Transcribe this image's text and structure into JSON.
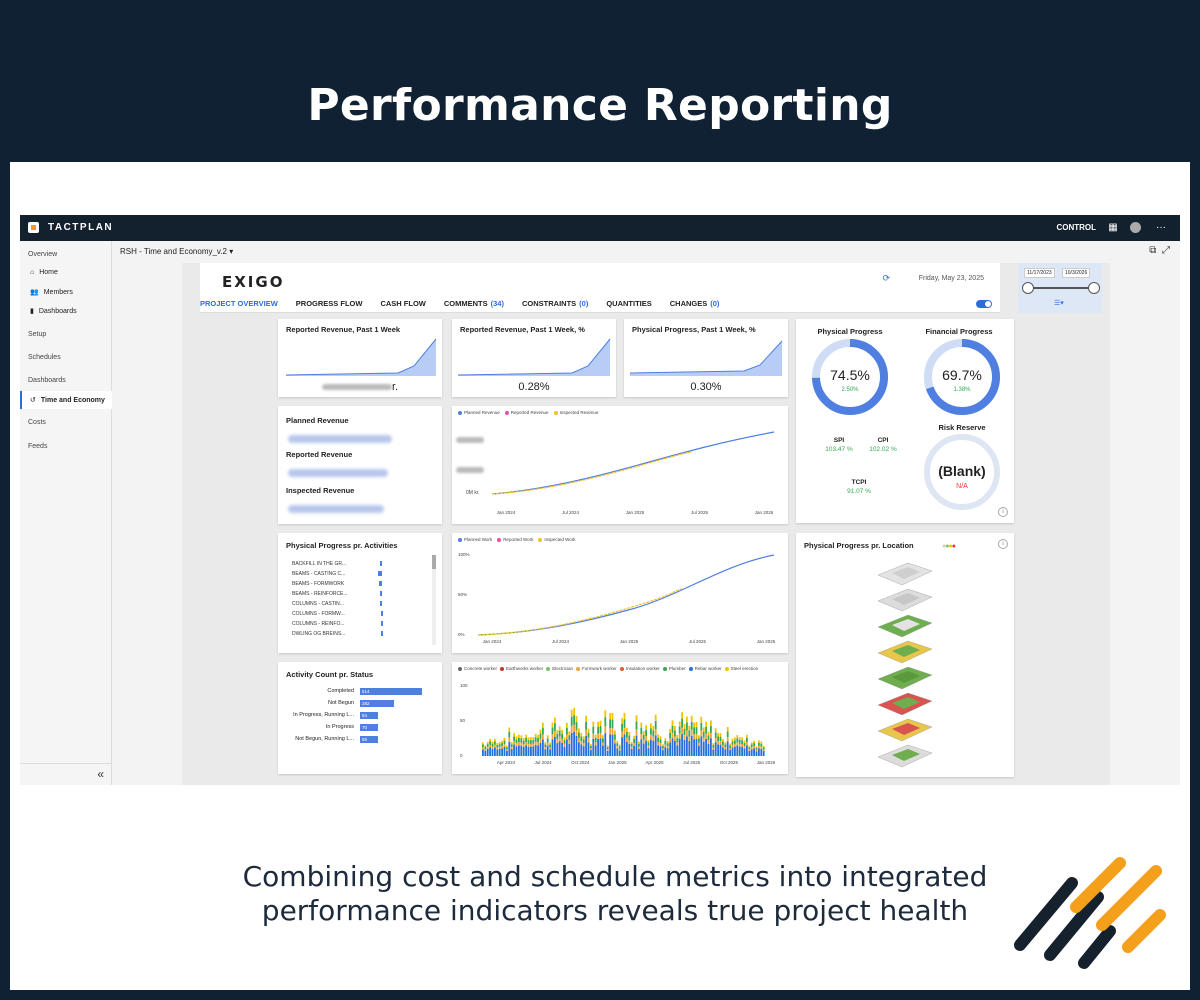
{
  "banner": {
    "title": "Performance Reporting"
  },
  "tagline": {
    "text": "Combining cost and schedule metrics into integrated performance indicators reveals true project health"
  },
  "app": {
    "brand": "TACTPLAN",
    "control_label": "CONTROL",
    "breadcrumb": "RSH - Time and Economy_v.2"
  },
  "sidebar": {
    "overview": "Overview",
    "home": "Home",
    "members": "Members",
    "dashboards_sub": "Dashboards",
    "setup": "Setup",
    "schedules": "Schedules",
    "dashboards": "Dashboards",
    "time_economy": "Time and Economy",
    "costs": "Costs",
    "feeds": "Feeds",
    "collapse": "«"
  },
  "report": {
    "logo": "EXIGO",
    "date": "Friday, May 23, 2025",
    "range_start": "11/17/2023",
    "range_end": "10/3/2026",
    "tabs": [
      {
        "label": "PROJECT OVERVIEW",
        "count": ""
      },
      {
        "label": "PROGRESS FLOW",
        "count": ""
      },
      {
        "label": "CASH FLOW",
        "count": ""
      },
      {
        "label": "COMMENTS",
        "count": "(34)"
      },
      {
        "label": "CONSTRAINTS",
        "count": "(0)"
      },
      {
        "label": "QUANTITIES",
        "count": ""
      },
      {
        "label": "CHANGES",
        "count": "(0)"
      }
    ]
  },
  "kpis": {
    "rev_week_title": "Reported Revenue, Past 1 Week",
    "rev_week_value_suffix": "r.",
    "rev_week_pct_title": "Reported Revenue, Past 1 Week, %",
    "rev_week_pct_value": "0.28%",
    "phys_week_title": "Physical Progress, Past 1 Week, %",
    "phys_week_value": "0.30%"
  },
  "revenue_card": {
    "planned": "Planned Revenue",
    "reported": "Reported Revenue",
    "inspected": "Inspected Revenue"
  },
  "revenue_chart": {
    "legend": [
      "Planned Revenue",
      "Reported Revenue",
      "Inspected Revenue"
    ],
    "y_tick": "0M kr.",
    "x_ticks": [
      "Jan 2024",
      "Jul 2024",
      "Jan 2025",
      "Jul 2025",
      "Jan 2026"
    ]
  },
  "progress": {
    "physical_title": "Physical Progress",
    "physical_value": "74.5%",
    "physical_delta": "2.50%",
    "physical_fraction": 0.745,
    "financial_title": "Financial Progress",
    "financial_value": "69.7%",
    "financial_delta": "1.38%",
    "financial_fraction": 0.697,
    "spi_label": "SPI",
    "spi_value": "103.47 %",
    "cpi_label": "CPI",
    "cpi_value": "102.02 %",
    "tcpi_label": "TCPI",
    "tcpi_value": "91.07 %",
    "risk_title": "Risk Reserve",
    "risk_value": "(Blank)",
    "risk_sub": "N/A"
  },
  "activities": {
    "title": "Physical Progress pr. Activities",
    "rows": [
      {
        "label": "BACKFILL IN THE GR...",
        "value": 0.1
      },
      {
        "label": "BEAMS - CASTING C...",
        "value": 0.2
      },
      {
        "label": "BEAMS - FORMWORK",
        "value": 0.15
      },
      {
        "label": "BEAMS - REINFORCE...",
        "value": 0.1
      },
      {
        "label": "COLUMNS - CASTIN...",
        "value": 0.08
      },
      {
        "label": "COLUMNS - FORMW...",
        "value": 0.07
      },
      {
        "label": "COLUMNS - REINFO...",
        "value": 0.05
      },
      {
        "label": "DWLING OG BREINS...",
        "value": 0.04
      }
    ]
  },
  "work_chart": {
    "legend": [
      "Planned Work",
      "Reported Work",
      "Inspected Work"
    ],
    "y_ticks": [
      "100%",
      "50%",
      "0%"
    ],
    "x_ticks": [
      "Jan 2024",
      "Jul 2024",
      "Jan 2025",
      "Jul 2025",
      "Jan 2026"
    ]
  },
  "location": {
    "title": "Physical Progress pr. Location"
  },
  "status": {
    "title": "Activity Count pr. Status",
    "rows": [
      {
        "label": "Completed",
        "value": 514
      },
      {
        "label": "Not Begun",
        "value": 282
      },
      {
        "label": "In Progress, Running L...",
        "value": 84
      },
      {
        "label": "In Progress",
        "value": 70
      },
      {
        "label": "Not Begun, Running L...",
        "value": 55
      }
    ]
  },
  "crew_chart": {
    "legend": [
      "Concrete worker",
      "Earthworks worker",
      "Electrician",
      "Formwork worker",
      "Insulation worker",
      "Plumber",
      "Rebar worker",
      "Steel erection"
    ],
    "legend_colors": [
      "#666666",
      "#c0392b",
      "#7cc36a",
      "#f2a33a",
      "#e05a2b",
      "#34a853",
      "#2a6edb",
      "#f3c300"
    ],
    "y_ticks": [
      "100",
      "50",
      "0"
    ],
    "x_ticks": [
      "Apr 2024",
      "Jul 2024",
      "Oct 2024",
      "Jan 2025",
      "Apr 2025",
      "Jul 2025",
      "Oct 2025",
      "Jan 2026"
    ]
  },
  "colors": {
    "accent": "#2a6edb",
    "navy": "#0f2133",
    "orange": "#f39c12",
    "good": "#34a853",
    "bad": "#e53935"
  }
}
